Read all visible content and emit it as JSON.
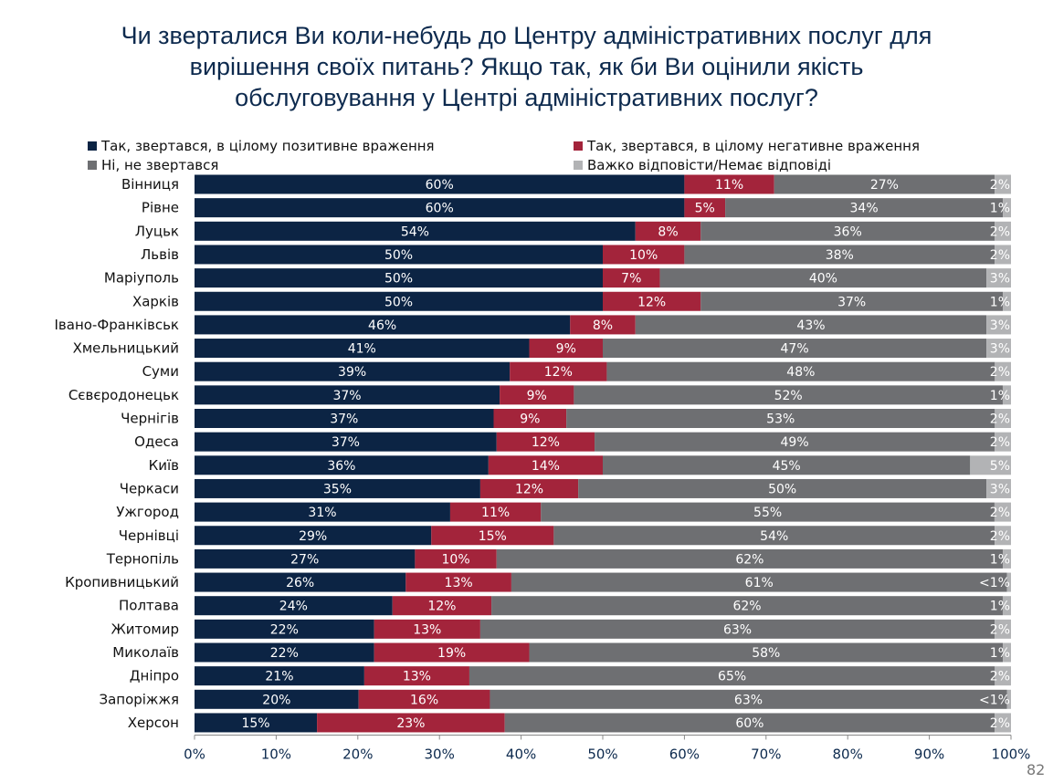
{
  "chart_data": {
    "type": "bar",
    "orientation": "horizontal",
    "stacked": true,
    "title": "Чи зверталися Ви коли-небудь до Центру адміністративних послуг для вирішення своїх питань? Якщо так, як би Ви оцінили якість обслуговування у Центрі адміністративних послуг?",
    "xlim": [
      0,
      100
    ],
    "xticks": [
      "0%",
      "10%",
      "20%",
      "30%",
      "40%",
      "50%",
      "60%",
      "70%",
      "80%",
      "90%",
      "100%"
    ],
    "legend_position": "top",
    "grid": false,
    "categories": [
      "Вінниця",
      "Рівне",
      "Луцьк",
      "Львів",
      "Маріуполь",
      "Харків",
      "Івано-Франківськ",
      "Хмельницький",
      "Суми",
      "Сєвєродонецьк",
      "Чернігів",
      "Одеса",
      "Київ",
      "Черкаси",
      "Ужгород",
      "Чернівці",
      "Тернопіль",
      "Кропивницький",
      "Полтава",
      "Житомир",
      "Миколаїв",
      "Дніпро",
      "Запоріжжя",
      "Херсон"
    ],
    "series": [
      {
        "name": "Так, звертався, в цілому позитивне враження",
        "color": "#0c2444",
        "values": [
          60,
          60,
          54,
          50,
          50,
          50,
          46,
          41,
          39,
          37,
          37,
          37,
          36,
          35,
          31,
          29,
          27,
          26,
          24,
          22,
          22,
          21,
          20,
          15
        ]
      },
      {
        "name": "Так, звертався, в цілому негативне враження",
        "color": "#a3243b",
        "values": [
          11,
          5,
          8,
          10,
          7,
          12,
          8,
          9,
          12,
          9,
          9,
          12,
          14,
          12,
          11,
          15,
          10,
          13,
          12,
          13,
          19,
          13,
          16,
          23
        ]
      },
      {
        "name": "Ні, не звертався",
        "color": "#6e6f72",
        "values": [
          27,
          34,
          36,
          38,
          40,
          37,
          43,
          47,
          48,
          52,
          53,
          49,
          45,
          50,
          55,
          54,
          62,
          61,
          62,
          63,
          58,
          65,
          63,
          60
        ]
      },
      {
        "name": "Важко відповісти/Немає відповіді",
        "color": "#b2b3b5",
        "values": [
          2,
          1,
          2,
          2,
          3,
          1,
          3,
          3,
          2,
          1,
          2,
          2,
          5,
          3,
          2,
          2,
          1,
          0.5,
          1,
          2,
          1,
          2,
          0.5,
          2
        ],
        "labels": [
          "2%",
          "1%",
          "2%",
          "2%",
          "3%",
          "1%",
          "3%",
          "3%",
          "2%",
          "1%",
          "2%",
          "2%",
          "5%",
          "3%",
          "2%",
          "2%",
          "1%",
          "<1%",
          "1%",
          "2%",
          "1%",
          "2%",
          "<1%",
          "2%"
        ]
      }
    ]
  },
  "title_lines": [
    "Чи зверталися Ви коли-небудь до Центру адміністративних послуг для",
    "вирішення своїх питань? Якщо так, як би Ви оцінили якість",
    "обслуговування у Центрі адміністративних послуг?"
  ],
  "page_number": "82"
}
